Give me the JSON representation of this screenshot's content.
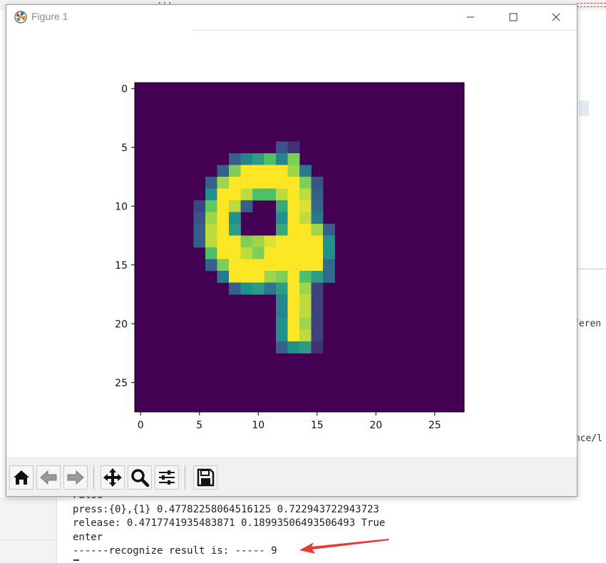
{
  "window": {
    "title": "Figure 1",
    "controls": [
      "minimize",
      "maximize",
      "close"
    ]
  },
  "toolbar": {
    "buttons": [
      {
        "name": "home",
        "icon": "home-icon"
      },
      {
        "name": "back",
        "icon": "arrow-left-icon"
      },
      {
        "name": "forward",
        "icon": "arrow-right-icon"
      },
      {
        "name": "pan",
        "icon": "move-icon"
      },
      {
        "name": "zoom",
        "icon": "zoom-icon"
      },
      {
        "name": "configure-subplots",
        "icon": "sliders-icon"
      },
      {
        "name": "save",
        "icon": "save-icon"
      }
    ]
  },
  "console": {
    "lines": [
      "False",
      "press:{0},{1} 0.47782258064516125 0.722943722943723",
      "release: 0.4717741935483871 0.18993506493506493 True",
      "enter",
      "------recognize result is: ----- 9"
    ]
  },
  "background": {
    "right_fragment_1": "feren",
    "right_fragment_2": "ence/l",
    "paren": ")"
  },
  "colors": {
    "arrow": "#e63b2e",
    "viridis_low": "#440154",
    "viridis_high": "#fde725"
  },
  "chart_data": {
    "type": "heatmap",
    "title": "",
    "xlabel": "",
    "ylabel": "",
    "colormap": "viridis",
    "xlim": [
      -0.5,
      27.5
    ],
    "ylim": [
      27.5,
      -0.5
    ],
    "xticks": [
      0,
      5,
      10,
      15,
      20,
      25
    ],
    "yticks": [
      0,
      5,
      10,
      15,
      20,
      25
    ],
    "grid": false,
    "shape": [
      28,
      28
    ],
    "pixels": [
      {
        "row": 5,
        "col": 12,
        "v": 0.25
      },
      {
        "row": 5,
        "col": 13,
        "v": 0.15
      },
      {
        "row": 6,
        "col": 8,
        "v": 0.3
      },
      {
        "row": 6,
        "col": 9,
        "v": 0.45
      },
      {
        "row": 6,
        "col": 10,
        "v": 0.55
      },
      {
        "row": 6,
        "col": 11,
        "v": 0.7
      },
      {
        "row": 6,
        "col": 12,
        "v": 0.45
      },
      {
        "row": 6,
        "col": 13,
        "v": 0.8
      },
      {
        "row": 7,
        "col": 7,
        "v": 0.3
      },
      {
        "row": 7,
        "col": 8,
        "v": 0.8
      },
      {
        "row": 7,
        "col": 9,
        "v": 1
      },
      {
        "row": 7,
        "col": 10,
        "v": 1
      },
      {
        "row": 7,
        "col": 11,
        "v": 1
      },
      {
        "row": 7,
        "col": 12,
        "v": 1
      },
      {
        "row": 7,
        "col": 13,
        "v": 0.85
      },
      {
        "row": 7,
        "col": 14,
        "v": 0.4
      },
      {
        "row": 8,
        "col": 6,
        "v": 0.3
      },
      {
        "row": 8,
        "col": 7,
        "v": 0.85
      },
      {
        "row": 8,
        "col": 8,
        "v": 1
      },
      {
        "row": 8,
        "col": 9,
        "v": 1
      },
      {
        "row": 8,
        "col": 10,
        "v": 1
      },
      {
        "row": 8,
        "col": 11,
        "v": 1
      },
      {
        "row": 8,
        "col": 12,
        "v": 1
      },
      {
        "row": 8,
        "col": 13,
        "v": 1
      },
      {
        "row": 8,
        "col": 14,
        "v": 0.8
      },
      {
        "row": 8,
        "col": 15,
        "v": 0.25
      },
      {
        "row": 9,
        "col": 6,
        "v": 0.5
      },
      {
        "row": 9,
        "col": 7,
        "v": 1
      },
      {
        "row": 9,
        "col": 8,
        "v": 1
      },
      {
        "row": 9,
        "col": 9,
        "v": 0.9
      },
      {
        "row": 9,
        "col": 10,
        "v": 0.7
      },
      {
        "row": 9,
        "col": 11,
        "v": 0.7
      },
      {
        "row": 9,
        "col": 12,
        "v": 0.9
      },
      {
        "row": 9,
        "col": 13,
        "v": 1
      },
      {
        "row": 9,
        "col": 14,
        "v": 0.9
      },
      {
        "row": 9,
        "col": 15,
        "v": 0.3
      },
      {
        "row": 10,
        "col": 5,
        "v": 0.2
      },
      {
        "row": 10,
        "col": 6,
        "v": 0.75
      },
      {
        "row": 10,
        "col": 7,
        "v": 1
      },
      {
        "row": 10,
        "col": 8,
        "v": 0.9
      },
      {
        "row": 10,
        "col": 9,
        "v": 0.3
      },
      {
        "row": 10,
        "col": 12,
        "v": 0.6
      },
      {
        "row": 10,
        "col": 13,
        "v": 1
      },
      {
        "row": 10,
        "col": 14,
        "v": 0.95
      },
      {
        "row": 10,
        "col": 15,
        "v": 0.35
      },
      {
        "row": 11,
        "col": 5,
        "v": 0.25
      },
      {
        "row": 11,
        "col": 6,
        "v": 0.85
      },
      {
        "row": 11,
        "col": 7,
        "v": 1
      },
      {
        "row": 11,
        "col": 8,
        "v": 0.5
      },
      {
        "row": 11,
        "col": 12,
        "v": 0.5
      },
      {
        "row": 11,
        "col": 13,
        "v": 1
      },
      {
        "row": 11,
        "col": 14,
        "v": 0.9
      },
      {
        "row": 11,
        "col": 15,
        "v": 0.4
      },
      {
        "row": 12,
        "col": 5,
        "v": 0.3
      },
      {
        "row": 12,
        "col": 6,
        "v": 0.9
      },
      {
        "row": 12,
        "col": 7,
        "v": 1
      },
      {
        "row": 12,
        "col": 8,
        "v": 0.55
      },
      {
        "row": 12,
        "col": 12,
        "v": 0.6
      },
      {
        "row": 12,
        "col": 13,
        "v": 1
      },
      {
        "row": 12,
        "col": 14,
        "v": 1
      },
      {
        "row": 12,
        "col": 15,
        "v": 0.85
      },
      {
        "row": 12,
        "col": 16,
        "v": 0.3
      },
      {
        "row": 13,
        "col": 5,
        "v": 0.3
      },
      {
        "row": 13,
        "col": 6,
        "v": 0.9
      },
      {
        "row": 13,
        "col": 7,
        "v": 1
      },
      {
        "row": 13,
        "col": 8,
        "v": 1
      },
      {
        "row": 13,
        "col": 9,
        "v": 0.8
      },
      {
        "row": 13,
        "col": 10,
        "v": 0.85
      },
      {
        "row": 13,
        "col": 11,
        "v": 0.95
      },
      {
        "row": 13,
        "col": 12,
        "v": 1
      },
      {
        "row": 13,
        "col": 13,
        "v": 1
      },
      {
        "row": 13,
        "col": 14,
        "v": 1
      },
      {
        "row": 13,
        "col": 15,
        "v": 1
      },
      {
        "row": 13,
        "col": 16,
        "v": 0.5
      },
      {
        "row": 14,
        "col": 6,
        "v": 0.7
      },
      {
        "row": 14,
        "col": 7,
        "v": 1
      },
      {
        "row": 14,
        "col": 8,
        "v": 1
      },
      {
        "row": 14,
        "col": 9,
        "v": 0.9
      },
      {
        "row": 14,
        "col": 10,
        "v": 0.8
      },
      {
        "row": 14,
        "col": 11,
        "v": 1
      },
      {
        "row": 14,
        "col": 12,
        "v": 1
      },
      {
        "row": 14,
        "col": 13,
        "v": 1
      },
      {
        "row": 14,
        "col": 14,
        "v": 1
      },
      {
        "row": 14,
        "col": 15,
        "v": 1
      },
      {
        "row": 14,
        "col": 16,
        "v": 0.5
      },
      {
        "row": 15,
        "col": 6,
        "v": 0.3
      },
      {
        "row": 15,
        "col": 7,
        "v": 0.8
      },
      {
        "row": 15,
        "col": 8,
        "v": 1
      },
      {
        "row": 15,
        "col": 9,
        "v": 1
      },
      {
        "row": 15,
        "col": 10,
        "v": 1
      },
      {
        "row": 15,
        "col": 11,
        "v": 1
      },
      {
        "row": 15,
        "col": 12,
        "v": 1
      },
      {
        "row": 15,
        "col": 13,
        "v": 1
      },
      {
        "row": 15,
        "col": 14,
        "v": 1
      },
      {
        "row": 15,
        "col": 15,
        "v": 1
      },
      {
        "row": 15,
        "col": 16,
        "v": 0.35
      },
      {
        "row": 16,
        "col": 7,
        "v": 0.4
      },
      {
        "row": 16,
        "col": 8,
        "v": 1
      },
      {
        "row": 16,
        "col": 9,
        "v": 1
      },
      {
        "row": 16,
        "col": 10,
        "v": 1
      },
      {
        "row": 16,
        "col": 11,
        "v": 0.85
      },
      {
        "row": 16,
        "col": 12,
        "v": 0.8
      },
      {
        "row": 16,
        "col": 13,
        "v": 1
      },
      {
        "row": 16,
        "col": 14,
        "v": 0.7
      },
      {
        "row": 16,
        "col": 15,
        "v": 0.55
      },
      {
        "row": 16,
        "col": 16,
        "v": 0.35
      },
      {
        "row": 17,
        "col": 8,
        "v": 0.3
      },
      {
        "row": 17,
        "col": 9,
        "v": 0.5
      },
      {
        "row": 17,
        "col": 10,
        "v": 0.55
      },
      {
        "row": 17,
        "col": 11,
        "v": 0.4
      },
      {
        "row": 17,
        "col": 12,
        "v": 0.55
      },
      {
        "row": 17,
        "col": 13,
        "v": 1
      },
      {
        "row": 17,
        "col": 14,
        "v": 0.85
      },
      {
        "row": 17,
        "col": 15,
        "v": 0.2
      },
      {
        "row": 18,
        "col": 12,
        "v": 0.45
      },
      {
        "row": 18,
        "col": 13,
        "v": 1
      },
      {
        "row": 18,
        "col": 14,
        "v": 0.9
      },
      {
        "row": 18,
        "col": 15,
        "v": 0.2
      },
      {
        "row": 19,
        "col": 12,
        "v": 0.45
      },
      {
        "row": 19,
        "col": 13,
        "v": 1
      },
      {
        "row": 19,
        "col": 14,
        "v": 0.9
      },
      {
        "row": 19,
        "col": 15,
        "v": 0.2
      },
      {
        "row": 20,
        "col": 12,
        "v": 0.5
      },
      {
        "row": 20,
        "col": 13,
        "v": 1
      },
      {
        "row": 20,
        "col": 14,
        "v": 0.85
      },
      {
        "row": 20,
        "col": 15,
        "v": 0.2
      },
      {
        "row": 21,
        "col": 12,
        "v": 0.5
      },
      {
        "row": 21,
        "col": 13,
        "v": 1
      },
      {
        "row": 21,
        "col": 14,
        "v": 0.9
      },
      {
        "row": 21,
        "col": 15,
        "v": 0.2
      },
      {
        "row": 22,
        "col": 12,
        "v": 0.3
      },
      {
        "row": 22,
        "col": 13,
        "v": 0.5
      },
      {
        "row": 22,
        "col": 14,
        "v": 0.55
      },
      {
        "row": 22,
        "col": 15,
        "v": 0.15
      }
    ]
  }
}
